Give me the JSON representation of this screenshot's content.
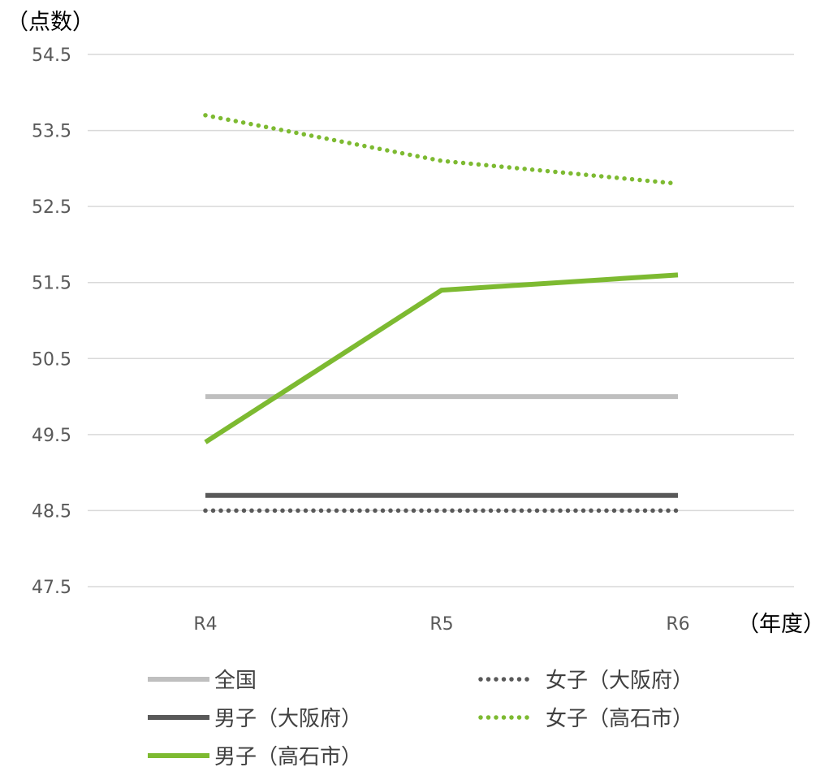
{
  "chart_data": {
    "type": "line",
    "ylabel": "（点数）",
    "xlabel": "（年度）",
    "categories": [
      "R4",
      "R5",
      "R6"
    ],
    "ylim": [
      47.5,
      54.5
    ],
    "yticks": [
      "54.5",
      "53.5",
      "52.5",
      "51.5",
      "50.5",
      "49.5",
      "48.5",
      "47.5"
    ],
    "grid": true,
    "legend_position": "bottom",
    "series": [
      {
        "name": "全国",
        "values": [
          50.0,
          50.0,
          50.0
        ],
        "color": "#bfbfbf",
        "style": "solid"
      },
      {
        "name": "男子（大阪府）",
        "values": [
          48.7,
          48.7,
          48.7
        ],
        "color": "#595959",
        "style": "solid"
      },
      {
        "name": "男子（高石市）",
        "values": [
          49.4,
          51.4,
          51.6
        ],
        "color": "#7dba31",
        "style": "solid"
      },
      {
        "name": "女子（大阪府）",
        "values": [
          48.5,
          48.5,
          48.5
        ],
        "color": "#595959",
        "style": "dotted"
      },
      {
        "name": "女子（高石市）",
        "values": [
          53.7,
          53.1,
          52.8
        ],
        "color": "#7dba31",
        "style": "dotted"
      }
    ]
  }
}
